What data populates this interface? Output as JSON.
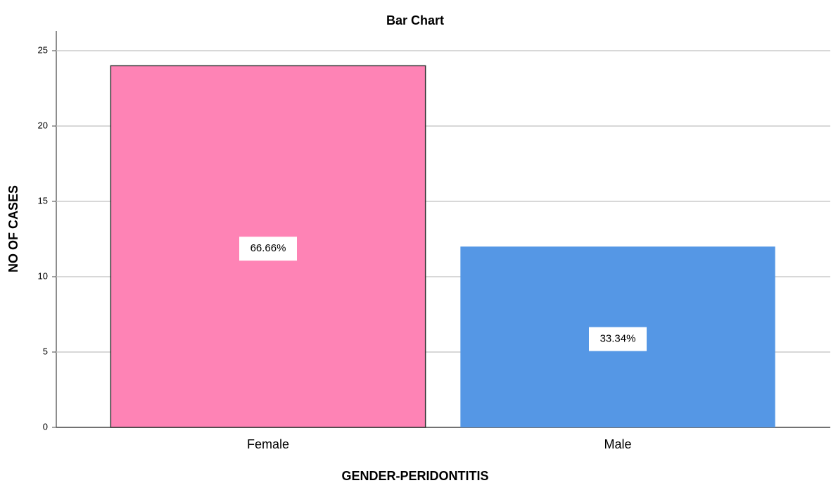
{
  "chart_data": {
    "type": "bar",
    "title": "Bar Chart",
    "x_label": "GENDER-PERIDONTITIS",
    "y_label": "NO OF CASES",
    "categories": [
      "Female",
      "Male"
    ],
    "values": [
      24,
      12
    ],
    "colors": [
      "#fe83b5",
      "#5597e5"
    ],
    "annotations": [
      "66.66%",
      "33.34%"
    ],
    "ylim": [
      0,
      25
    ],
    "yticks": [
      0,
      5,
      10,
      15,
      20,
      25
    ],
    "grid": true
  }
}
